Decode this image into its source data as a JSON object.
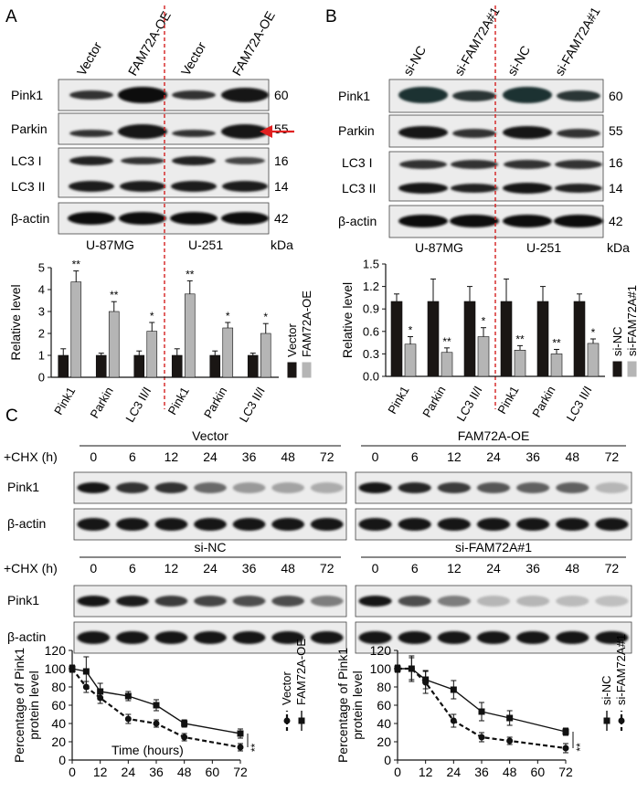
{
  "panelA": {
    "letter": "A",
    "lanes": [
      "Vector",
      "FAM72A-OE",
      "Vector",
      "FAM72A-OE"
    ],
    "blots": [
      {
        "name": "Pink1",
        "kda": "60"
      },
      {
        "name": "Parkin",
        "kda": "55"
      },
      {
        "name": "LC3 I",
        "kda": "16"
      },
      {
        "name": "LC3 II",
        "kda": "14"
      },
      {
        "name": "β-actin",
        "kda": "42"
      }
    ],
    "cells": [
      "U-87MG",
      "U-251"
    ],
    "kda_unit": "kDa"
  },
  "panelB": {
    "letter": "B",
    "lanes": [
      "si-NC",
      "si-FAM72A#1",
      "si-NC",
      "si-FAM72A#1"
    ],
    "blots": [
      {
        "name": "Pink1",
        "kda": "60"
      },
      {
        "name": "Parkin",
        "kda": "55"
      },
      {
        "name": "LC3 I",
        "kda": "16"
      },
      {
        "name": "LC3 II",
        "kda": "14"
      },
      {
        "name": "β-actin",
        "kda": "42"
      }
    ],
    "cells": [
      "U-87MG",
      "U-251"
    ],
    "kda_unit": "kDa"
  },
  "panelC": {
    "letter": "C",
    "chx_label": "+CHX (h)",
    "timepoints": [
      "0",
      "6",
      "12",
      "24",
      "36",
      "48",
      "72"
    ],
    "groups": [
      "Vector",
      "FAM72A-OE",
      "si-NC",
      "si-FAM72A#1"
    ],
    "blot_rows": [
      "Pink1",
      "β-actin"
    ]
  },
  "chart_data": [
    {
      "type": "bar",
      "panel": "A",
      "categories": [
        "Pink1",
        "Parkin",
        "LC3 II/I",
        "Pink1",
        "Parkin",
        "LC3 II/I"
      ],
      "series": [
        {
          "name": "Vector",
          "values": [
            1.0,
            1.0,
            1.0,
            1.0,
            1.0,
            1.0
          ],
          "errors": [
            0.3,
            0.1,
            0.2,
            0.3,
            0.2,
            0.1
          ],
          "color": "#1a1614"
        },
        {
          "name": "FAM72A-OE",
          "values": [
            4.35,
            3.0,
            2.1,
            3.8,
            2.25,
            2.0
          ],
          "errors": [
            0.5,
            0.45,
            0.4,
            0.6,
            0.25,
            0.45
          ],
          "color": "#b5b5b5"
        }
      ],
      "significance": [
        "**",
        "**",
        "*",
        "**",
        "*",
        "*"
      ],
      "ylabel": "Relative level",
      "ylim": [
        0,
        5
      ],
      "yticks": [
        "0",
        "1",
        "2",
        "3",
        "4",
        "5"
      ]
    },
    {
      "type": "bar",
      "panel": "B",
      "categories": [
        "Pink1",
        "Parkin",
        "LC3 II/I",
        "Pink1",
        "Parkin",
        "LC3 II/I"
      ],
      "series": [
        {
          "name": "si-NC",
          "values": [
            1.0,
            1.0,
            1.0,
            1.0,
            1.0,
            1.0
          ],
          "errors": [
            0.1,
            0.3,
            0.2,
            0.3,
            0.2,
            0.1
          ],
          "color": "#1a1614"
        },
        {
          "name": "si-FAM72A#1",
          "values": [
            0.43,
            0.32,
            0.53,
            0.35,
            0.3,
            0.44
          ],
          "errors": [
            0.1,
            0.06,
            0.12,
            0.06,
            0.06,
            0.06
          ],
          "color": "#b5b5b5"
        }
      ],
      "significance": [
        "*",
        "**",
        "*",
        "**",
        "**",
        "*"
      ],
      "ylabel": "Relative level",
      "ylim": [
        0,
        1.5
      ],
      "yticks": [
        "0.0",
        "0.3",
        "0.6",
        "0.9",
        "1.2",
        "1.5"
      ]
    },
    {
      "type": "line",
      "panel": "C-left",
      "x": [
        0,
        6,
        12,
        24,
        36,
        48,
        72
      ],
      "series": [
        {
          "name": "Vector",
          "values": [
            100,
            80,
            68,
            45,
            40,
            25,
            14
          ],
          "errors": [
            4,
            6,
            6,
            5,
            4,
            4,
            4
          ],
          "style": "dashed"
        },
        {
          "name": "FAM72A-OE",
          "values": [
            100,
            97,
            75,
            70,
            60,
            40,
            29
          ],
          "errors": [
            4,
            16,
            9,
            5,
            6,
            4,
            5
          ],
          "style": "solid"
        }
      ],
      "significance": "**",
      "xlabel": "Time (hours)",
      "ylabel": "Percentage of Pink1 protein level",
      "xlim": [
        0,
        72
      ],
      "ylim": [
        0,
        120
      ],
      "xticks": [
        "0",
        "12",
        "24",
        "36",
        "48",
        "60",
        "72"
      ],
      "yticks": [
        "0",
        "20",
        "40",
        "60",
        "80",
        "100",
        "120"
      ]
    },
    {
      "type": "line",
      "panel": "C-right",
      "x": [
        0,
        6,
        12,
        24,
        36,
        48,
        72
      ],
      "series": [
        {
          "name": "si-NC",
          "values": [
            100,
            100,
            88,
            77,
            53,
            46,
            31
          ],
          "errors": [
            4,
            14,
            10,
            10,
            10,
            8,
            4
          ],
          "style": "solid"
        },
        {
          "name": "si-FAM72A#1",
          "values": [
            100,
            100,
            85,
            43,
            25,
            21,
            13
          ],
          "errors": [
            4,
            12,
            12,
            7,
            5,
            4,
            5
          ],
          "style": "dashed"
        }
      ],
      "significance": "**",
      "xlabel": "",
      "ylabel": "Percentage of Pink1 protein level",
      "xlim": [
        0,
        72
      ],
      "ylim": [
        0,
        120
      ],
      "xticks": [
        "0",
        "12",
        "24",
        "36",
        "48",
        "60",
        "72"
      ],
      "yticks": [
        "0",
        "20",
        "40",
        "60",
        "80",
        "100",
        "120"
      ]
    }
  ]
}
